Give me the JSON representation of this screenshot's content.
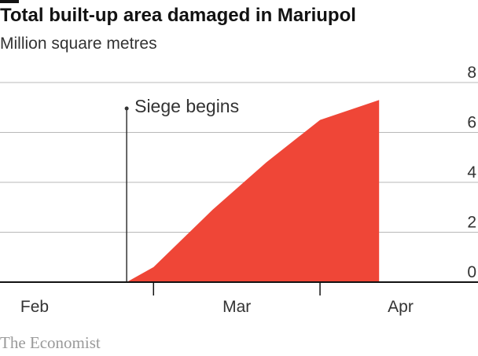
{
  "title": "Total built-up area damaged in Mariupol",
  "subtitle": "Million square metres",
  "source": "The Economist",
  "colors": {
    "area": "#ef4637",
    "grid": "#b8b8b8",
    "axis": "#121212",
    "text": "#333333"
  },
  "chart_data": {
    "type": "area",
    "title": "Total built-up area damaged in Mariupol",
    "ylabel": "Million square metres",
    "xlabel": "",
    "ylim": [
      0,
      8
    ],
    "y_ticks": [
      "0",
      "2",
      "4",
      "6",
      "8"
    ],
    "x_tick_labels": [
      "Feb",
      "Mar",
      "Apr"
    ],
    "grid": true,
    "series": [
      {
        "values": [
          {
            "x": "2022-02-24",
            "y": 0.0
          },
          {
            "x": "2022-03-01",
            "y": 0.6
          },
          {
            "x": "2022-03-12",
            "y": 2.9
          },
          {
            "x": "2022-03-22",
            "y": 4.8
          },
          {
            "x": "2022-04-01",
            "y": 6.5
          },
          {
            "x": "2022-04-12",
            "y": 7.3
          }
        ]
      }
    ],
    "annotations": [
      {
        "text": "Siege begins",
        "x": "2022-02-24"
      }
    ]
  }
}
